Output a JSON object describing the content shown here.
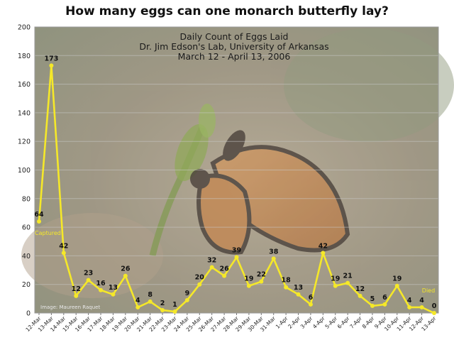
{
  "chart_data": {
    "type": "line",
    "title": "How many eggs can one monarch butterfly lay?",
    "subtitle_lines": [
      "Daily Count of Eggs Laid",
      "Dr. Jim Edson's Lab, University of Arkansas",
      "March 12 - April 13, 2006"
    ],
    "credit": "Image: Maureen Raquet",
    "ylim": [
      0,
      200
    ],
    "yticks": [
      0,
      20,
      40,
      60,
      80,
      100,
      120,
      140,
      160,
      180,
      200
    ],
    "grid": true,
    "categories": [
      "12-Mar",
      "13-Mar",
      "14-Mar",
      "15-Mar",
      "16-Mar",
      "17-Mar",
      "18-Mar",
      "19-Mar",
      "20-Mar",
      "21-Mar",
      "22-Mar",
      "23-Mar",
      "24-Mar",
      "25-Mar",
      "26-Mar",
      "27-Mar",
      "28-Mar",
      "29-Mar",
      "30-Mar",
      "31-Mar",
      "1-Apr",
      "2-Apr",
      "3-Apr",
      "4-Apr",
      "5-Apr",
      "6-Apr",
      "7-Apr",
      "8-Apr",
      "9-Apr",
      "10-Apr",
      "11-Apr",
      "12-Apr",
      "13-Apr"
    ],
    "series": [
      {
        "values": [
          64,
          173,
          42,
          12,
          23,
          16,
          13,
          26,
          4,
          8,
          2,
          1,
          9,
          20,
          32,
          26,
          39,
          19,
          22,
          38,
          18,
          13,
          6,
          42,
          19,
          21,
          12,
          5,
          6,
          19,
          4,
          4,
          0
        ],
        "color": "#f5e829"
      }
    ],
    "annotations": [
      {
        "text": "Captured",
        "category": "12-Mar"
      },
      {
        "text": "Died",
        "category": "13-Apr"
      }
    ]
  }
}
